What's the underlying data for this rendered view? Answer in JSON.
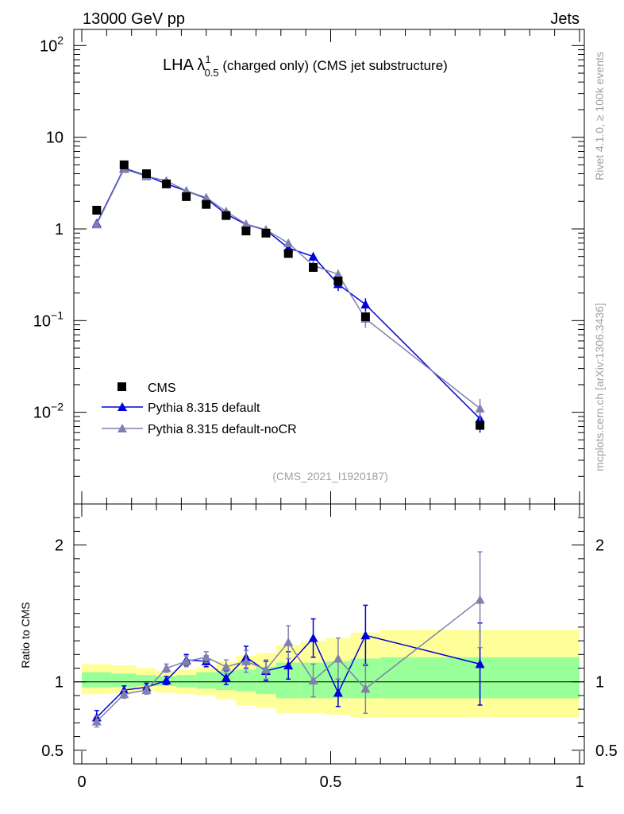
{
  "header": {
    "left": "13000 GeV pp",
    "right": "Jets"
  },
  "side": {
    "rivet": "Rivet 4.1.0, ≥ 100k events",
    "mcplots": "mcplots.cern.ch [arXiv:1306.3436]"
  },
  "chart_data": {
    "type": "scatter",
    "title_main": "LHA λ",
    "title_sup": "1",
    "title_sub": "0.5",
    "title_rest": " (charged only) (CMS jet substructure)",
    "watermark": "(CMS_2021_I1920187)",
    "xlim": [
      0,
      1
    ],
    "x_ticks": [
      {
        "value": 0,
        "label": "0"
      },
      {
        "value": 0.5,
        "label": "0.5"
      },
      {
        "value": 1,
        "label": "1"
      }
    ],
    "main": {
      "yscale": "log",
      "ylim": [
        0.001,
        150
      ],
      "y_ticks": [
        {
          "value": 0.01,
          "base": "10",
          "exp": "−2"
        },
        {
          "value": 0.1,
          "base": "10",
          "exp": "−1"
        },
        {
          "value": 1,
          "base": "1",
          "exp": ""
        },
        {
          "value": 10,
          "base": "10",
          "exp": ""
        },
        {
          "value": 100,
          "base": "10",
          "exp": "2"
        }
      ]
    },
    "ratio": {
      "ylabel": "Ratio to CMS",
      "ylim": [
        0.4,
        2.3
      ],
      "y_ticks": [
        {
          "value": 0.5,
          "label": "0.5"
        },
        {
          "value": 1,
          "label": "1"
        },
        {
          "value": 2,
          "label": "2"
        }
      ]
    },
    "bins": [
      0,
      0.06,
      0.11,
      0.15,
      0.19,
      0.23,
      0.27,
      0.31,
      0.35,
      0.39,
      0.44,
      0.49,
      0.54,
      0.6,
      1.0
    ],
    "band_inner": [
      [
        0.96,
        1.07
      ],
      [
        0.96,
        1.06
      ],
      [
        0.97,
        1.05
      ],
      [
        0.97,
        1.04
      ],
      [
        0.96,
        1.05
      ],
      [
        0.95,
        1.07
      ],
      [
        0.94,
        1.08
      ],
      [
        0.93,
        1.09
      ],
      [
        0.91,
        1.11
      ],
      [
        0.88,
        1.14
      ],
      [
        0.88,
        1.14
      ],
      [
        0.88,
        1.15
      ],
      [
        0.88,
        1.17
      ],
      [
        0.88,
        1.18
      ]
    ],
    "band_outer": [
      [
        0.91,
        1.13
      ],
      [
        0.92,
        1.12
      ],
      [
        0.93,
        1.1
      ],
      [
        0.92,
        1.08
      ],
      [
        0.91,
        1.09
      ],
      [
        0.9,
        1.11
      ],
      [
        0.87,
        1.15
      ],
      [
        0.83,
        1.19
      ],
      [
        0.81,
        1.21
      ],
      [
        0.77,
        1.27
      ],
      [
        0.77,
        1.3
      ],
      [
        0.76,
        1.32
      ],
      [
        0.74,
        1.36
      ],
      [
        0.74,
        1.38
      ]
    ],
    "series": [
      {
        "name": "CMS",
        "color": "#000000",
        "marker": "square",
        "x": [
          0.03,
          0.085,
          0.13,
          0.17,
          0.21,
          0.25,
          0.29,
          0.33,
          0.37,
          0.415,
          0.465,
          0.515,
          0.57,
          0.8
        ],
        "y": [
          1.6,
          5.0,
          4.0,
          3.1,
          2.25,
          1.85,
          1.4,
          0.95,
          0.9,
          0.54,
          0.38,
          0.27,
          0.11,
          0.0072
        ]
      },
      {
        "name": "Pythia 8.315 default",
        "color": "#0000dd",
        "marker": "triangle",
        "x": [
          0.03,
          0.085,
          0.13,
          0.17,
          0.21,
          0.25,
          0.29,
          0.33,
          0.37,
          0.415,
          0.465,
          0.515,
          0.57,
          0.8
        ],
        "y": [
          1.15,
          4.6,
          3.8,
          3.1,
          2.6,
          2.15,
          1.45,
          1.12,
          0.97,
          0.62,
          0.5,
          0.25,
          0.15,
          0.0085
        ],
        "yerr": [
          0.03,
          0.08,
          0.07,
          0.06,
          0.05,
          0.05,
          0.04,
          0.04,
          0.04,
          0.04,
          0.05,
          0.04,
          0.025,
          0.0025
        ],
        "ratio": [
          0.74,
          0.94,
          0.96,
          1.01,
          1.16,
          1.15,
          1.03,
          1.18,
          1.08,
          1.12,
          1.32,
          0.92,
          1.34,
          1.13
        ],
        "ratio_err": [
          0.05,
          0.03,
          0.03,
          0.03,
          0.04,
          0.04,
          0.05,
          0.08,
          0.07,
          0.1,
          0.14,
          0.1,
          0.22,
          0.3
        ]
      },
      {
        "name": "Pythia 8.315 default-noCR",
        "color": "#8080b0",
        "marker": "triangle",
        "x": [
          0.03,
          0.085,
          0.13,
          0.17,
          0.21,
          0.25,
          0.29,
          0.33,
          0.37,
          0.415,
          0.465,
          0.515,
          0.57,
          0.8
        ],
        "y": [
          1.12,
          4.5,
          3.75,
          3.35,
          2.6,
          2.2,
          1.55,
          1.13,
          0.98,
          0.7,
          0.4,
          0.32,
          0.105,
          0.011
        ],
        "yerr": [
          0.03,
          0.08,
          0.07,
          0.06,
          0.05,
          0.05,
          0.04,
          0.04,
          0.04,
          0.05,
          0.05,
          0.04,
          0.022,
          0.003
        ],
        "ratio": [
          0.71,
          0.91,
          0.94,
          1.1,
          1.15,
          1.18,
          1.11,
          1.15,
          1.09,
          1.29,
          1.01,
          1.17,
          0.95,
          1.6
        ],
        "ratio_err": [
          0.04,
          0.03,
          0.03,
          0.03,
          0.04,
          0.04,
          0.05,
          0.08,
          0.07,
          0.12,
          0.12,
          0.15,
          0.18,
          0.35
        ]
      }
    ]
  }
}
